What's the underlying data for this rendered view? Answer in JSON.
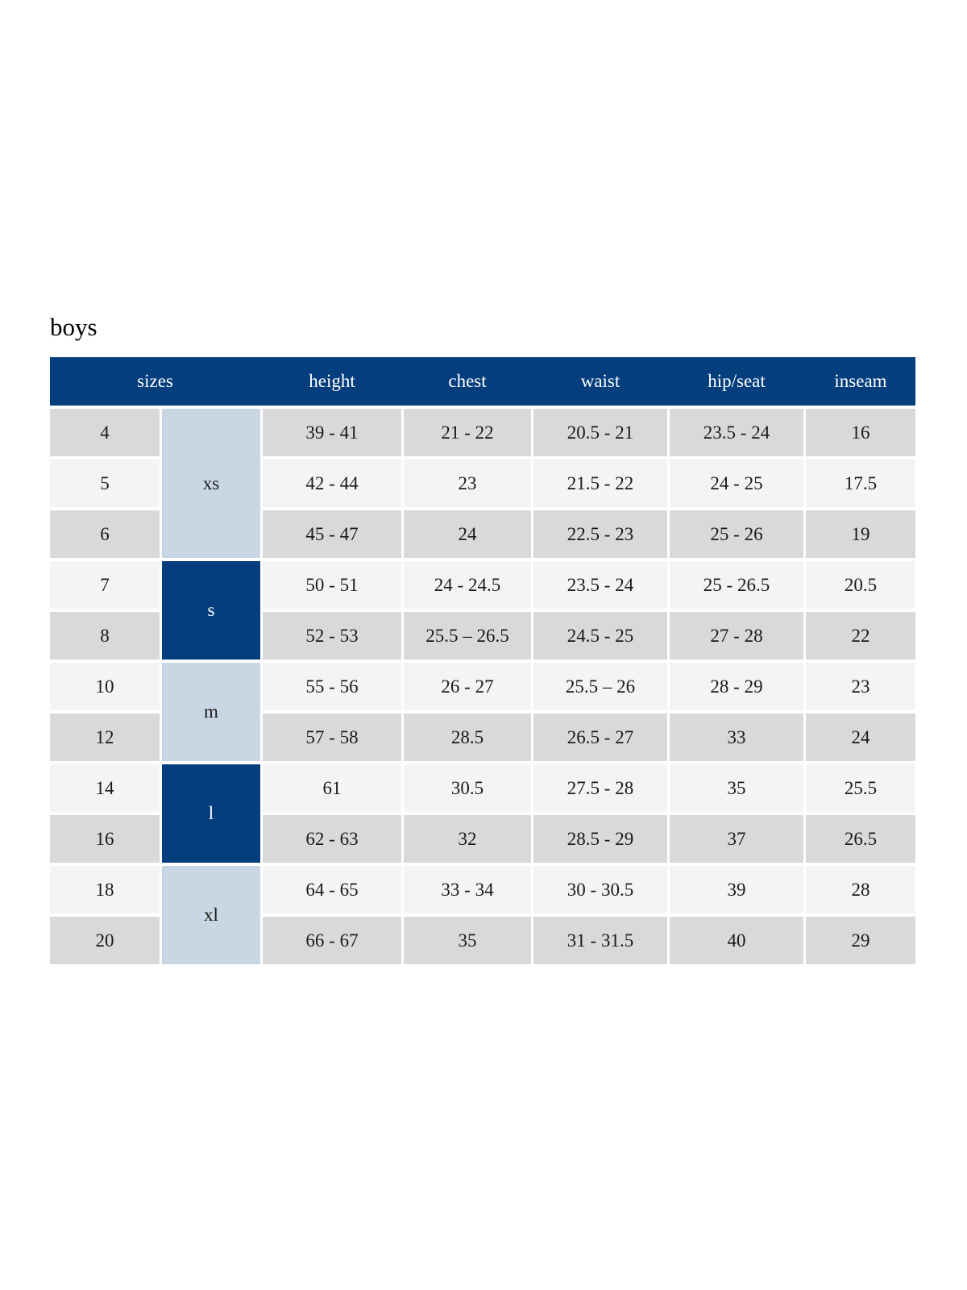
{
  "page": {
    "title": "boys"
  },
  "size_chart": {
    "headers": {
      "sizes": "sizes",
      "height": "height",
      "chest": "chest",
      "waist": "waist",
      "hip_seat": "hip/seat",
      "inseam": "inseam"
    },
    "groups": [
      {
        "label": "xs",
        "row_span": "rows 4-6",
        "style": "light-blue"
      },
      {
        "label": "s",
        "row_span": "rows 7-8",
        "style": "dark-navy"
      },
      {
        "label": "m",
        "row_span": "rows 10-12",
        "style": "light-blue"
      },
      {
        "label": "l",
        "row_span": "rows 14-16",
        "style": "dark-navy"
      },
      {
        "label": "xl",
        "row_span": "rows 18-20",
        "style": "light-blue"
      }
    ],
    "rows": [
      {
        "size": "4",
        "height": "39 - 41",
        "chest": "21 - 22",
        "waist": "20.5 - 21",
        "hip_seat": "23.5 - 24",
        "inseam": "16"
      },
      {
        "size": "5",
        "height": "42 - 44",
        "chest": "23",
        "waist": "21.5 - 22",
        "hip_seat": "24 - 25",
        "inseam": "17.5"
      },
      {
        "size": "6",
        "height": "45 - 47",
        "chest": "24",
        "waist": "22.5 - 23",
        "hip_seat": "25 - 26",
        "inseam": "19"
      },
      {
        "size": "7",
        "height": "50 - 51",
        "chest": "24 - 24.5",
        "waist": "23.5 - 24",
        "hip_seat": "25 - 26.5",
        "inseam": "20.5"
      },
      {
        "size": "8",
        "height": "52 - 53",
        "chest": "25.5 – 26.5",
        "waist": "24.5 - 25",
        "hip_seat": "27 - 28",
        "inseam": "22"
      },
      {
        "size": "10",
        "height": "55 - 56",
        "chest": "26 - 27",
        "waist": "25.5 – 26",
        "hip_seat": "28 - 29",
        "inseam": "23"
      },
      {
        "size": "12",
        "height": "57 - 58",
        "chest": "28.5",
        "waist": "26.5 - 27",
        "hip_seat": "33",
        "inseam": "24"
      },
      {
        "size": "14",
        "height": "61",
        "chest": "30.5",
        "waist": "27.5 - 28",
        "hip_seat": "35",
        "inseam": "25.5"
      },
      {
        "size": "16",
        "height": "62 - 63",
        "chest": "32",
        "waist": "28.5 - 29",
        "hip_seat": "37",
        "inseam": "26.5"
      },
      {
        "size": "18",
        "height": "64 - 65",
        "chest": "33 - 34",
        "waist": "30 - 30.5",
        "hip_seat": "39",
        "inseam": "28"
      },
      {
        "size": "20",
        "height": "66 - 67",
        "chest": "35",
        "waist": "31 - 31.5",
        "hip_seat": "40",
        "inseam": "29"
      }
    ],
    "colors": {
      "header_navy": "#043e7d",
      "group_dark_navy": "#043e7d",
      "group_light_blue": "#c9d7e5",
      "row_gray": "#d9d9d9",
      "row_light": "#f4f4f4",
      "header_text": "#ffffff",
      "body_text": "#1a1a1a"
    }
  }
}
